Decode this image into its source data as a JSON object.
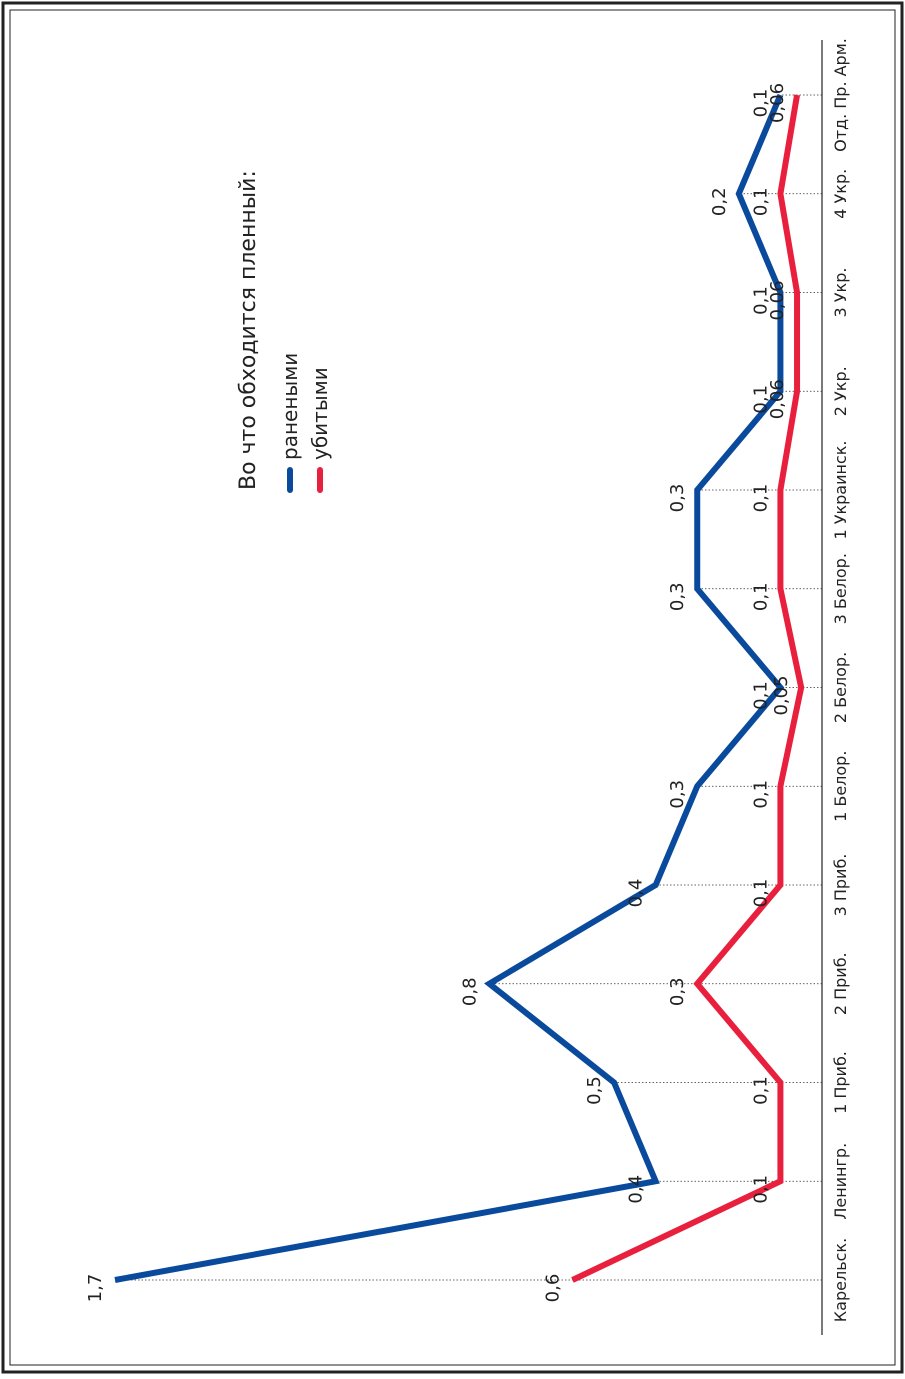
{
  "chart_data": {
    "type": "line",
    "title": "Во что обходится пленный:",
    "categories": [
      "Карельск.",
      "Ленингр.",
      "1 Приб.",
      "2 Приб.",
      "3 Приб.",
      "1 Белор.",
      "2 Белор.",
      "3 Белор.",
      "1 Украинск.",
      "2 Укр.",
      "3 Укр.",
      "4 Укр.",
      "Отд. Пр. Арм."
    ],
    "series": [
      {
        "name": "ранеными",
        "color": "#0a4a9c",
        "values": [
          1.7,
          0.4,
          0.5,
          0.8,
          0.4,
          0.3,
          0.1,
          0.3,
          0.3,
          0.1,
          0.1,
          0.2,
          0.1
        ],
        "value_labels": [
          "1,7",
          "0,4",
          "0,5",
          "0,8",
          "0,4",
          "0,3",
          "0,1",
          "0,3",
          "0,3",
          "0,1",
          "0,1",
          "0,2",
          "0,1"
        ]
      },
      {
        "name": "убитыми",
        "color": "#e8203e",
        "values": [
          0.6,
          0.1,
          0.1,
          0.3,
          0.1,
          0.1,
          0.05,
          0.1,
          0.1,
          0.06,
          0.06,
          0.1,
          0.06
        ],
        "value_labels": [
          "0,6",
          "0,1",
          "0,1",
          "0,3",
          "0,1",
          "0,1",
          "0,05",
          "0,1",
          "0,1",
          "0,06",
          "0,06",
          "0,1",
          "0,06"
        ]
      }
    ]
  }
}
